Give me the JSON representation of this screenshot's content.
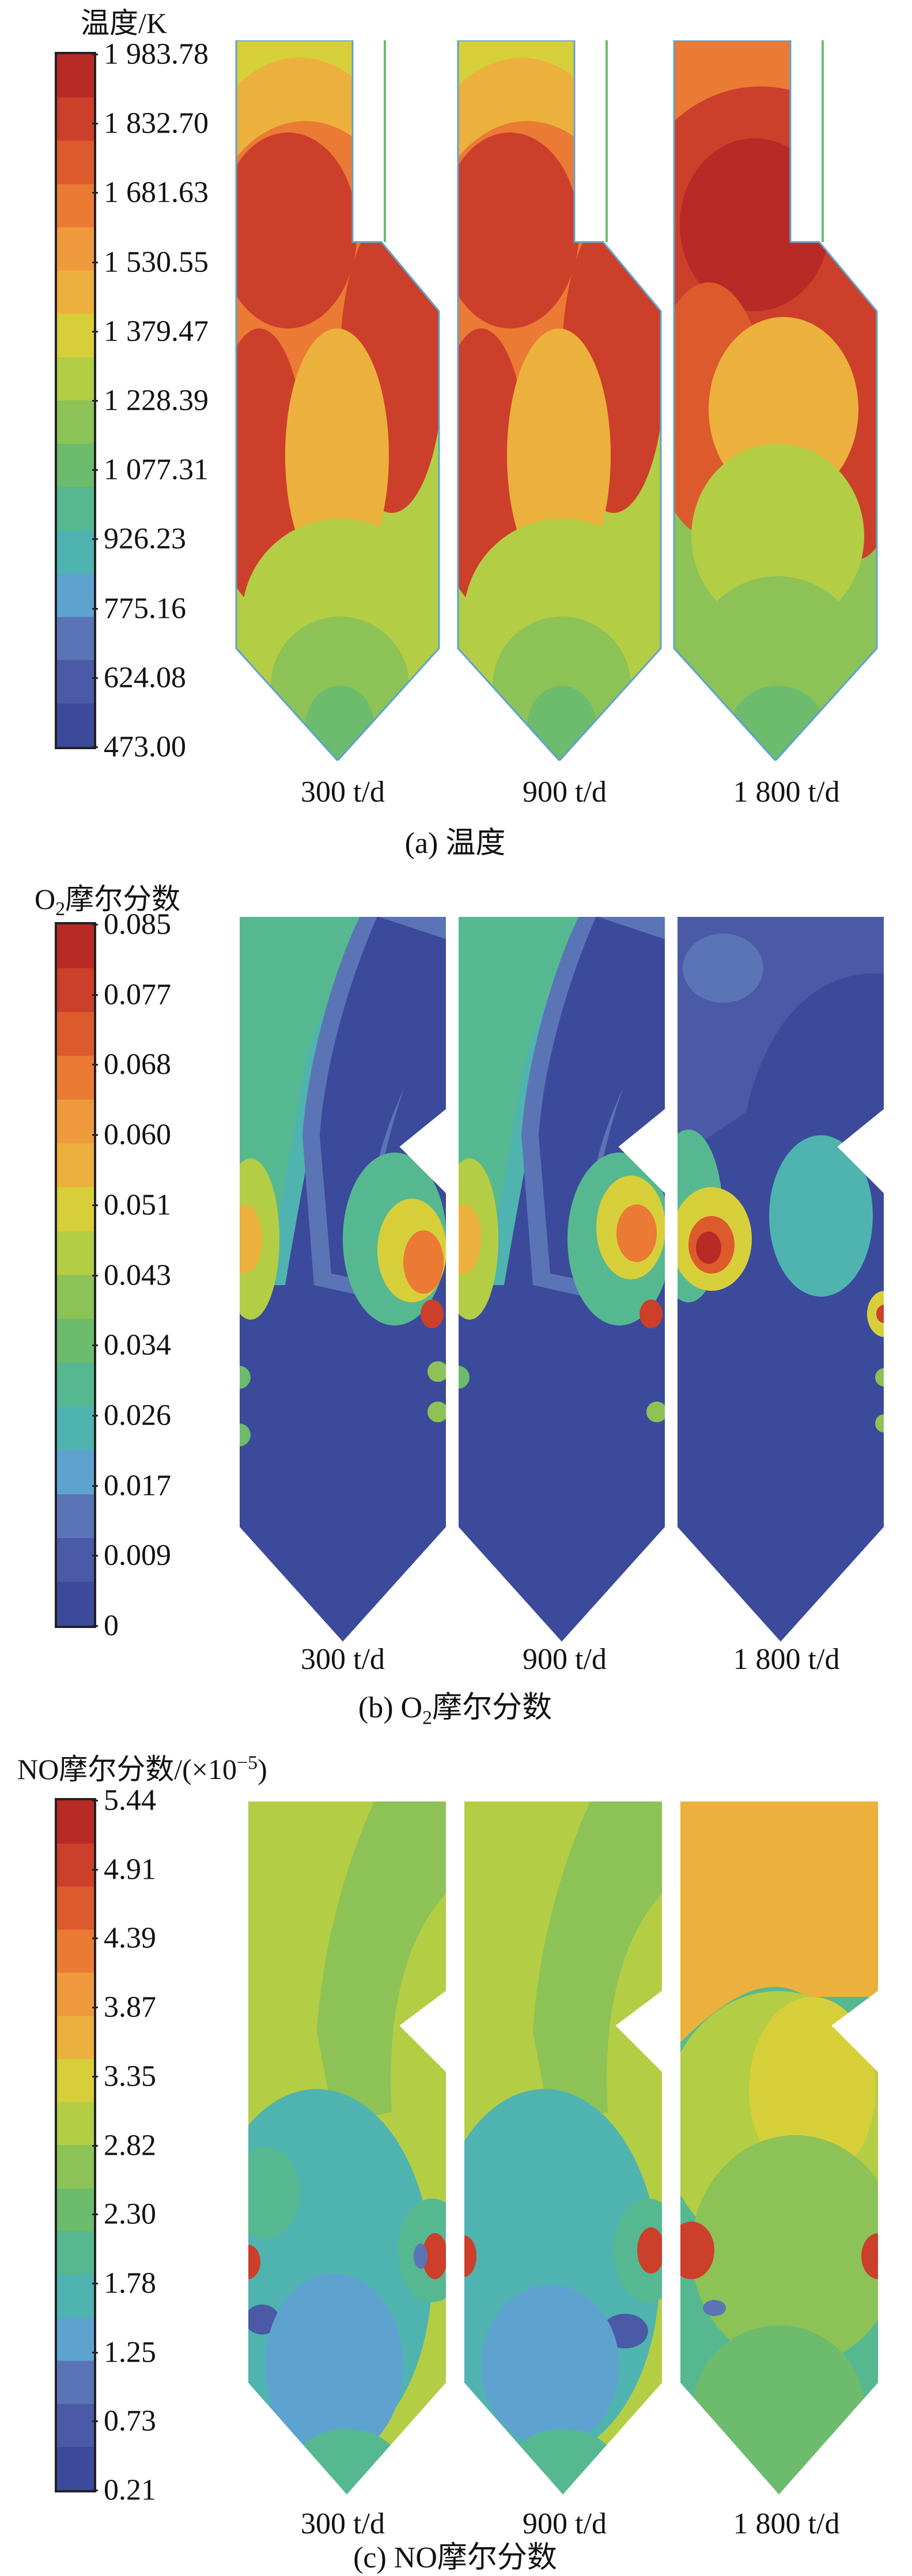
{
  "colors": {
    "scale": [
      "#3b4a9b",
      "#4a5aa6",
      "#5b74b6",
      "#5ea3cf",
      "#4fb3b0",
      "#56b890",
      "#6dbb6c",
      "#8cc256",
      "#b3cd45",
      "#d7cf3a",
      "#ecb13c",
      "#ef9a3c",
      "#ea7a34",
      "#dd5a2d",
      "#cc3f2a",
      "#b72a25"
    ]
  },
  "panels": [
    {
      "title": "温度/K",
      "ticks": [
        "1 983.78",
        "1 832.70",
        "1 681.63",
        "1 530.55",
        "1 379.47",
        "1 228.39",
        "1 077.31",
        "926.23",
        "775.16",
        "624.08",
        "473.00"
      ],
      "cases": [
        "300 t/d",
        "900 t/d",
        "1 800 t/d"
      ],
      "caption": "(a) 温度"
    },
    {
      "title_pre": "O",
      "title_sub": "2",
      "title_post": "摩尔分数",
      "ticks": [
        "0.085",
        "0.077",
        "0.068",
        "0.060",
        "0.051",
        "0.043",
        "0.034",
        "0.026",
        "0.017",
        "0.009",
        "0"
      ],
      "cases": [
        "300 t/d",
        "900 t/d",
        "1 800 t/d"
      ],
      "caption_pre": "(b) O",
      "caption_sub": "2",
      "caption_post": "摩尔分数"
    },
    {
      "title_pre": "NO摩尔分数/(×10",
      "title_sup": "−5",
      "title_post": ")",
      "ticks": [
        "5.44",
        "4.91",
        "4.39",
        "3.87",
        "3.35",
        "2.82",
        "2.30",
        "1.78",
        "1.25",
        "0.73",
        "0.21"
      ],
      "cases": [
        "300 t/d",
        "900 t/d",
        "1 800 t/d"
      ],
      "caption": "(c) NO摩尔分数"
    }
  ]
}
